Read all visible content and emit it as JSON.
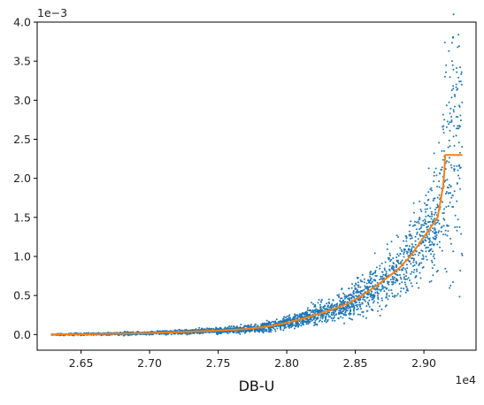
{
  "chart_data": {
    "type": "scatter",
    "title": "",
    "xlabel": "DB-U",
    "ylabel": "",
    "x_offset_text": "1e4",
    "y_offset_text": "1e−3",
    "xlim": [
      26180,
      29380
    ],
    "ylim": [
      -0.0002,
      0.004
    ],
    "x_ticks": [
      {
        "value": 26500,
        "label": "2.65"
      },
      {
        "value": 27000,
        "label": "2.70"
      },
      {
        "value": 27500,
        "label": "2.75"
      },
      {
        "value": 28000,
        "label": "2.80"
      },
      {
        "value": 28500,
        "label": "2.85"
      },
      {
        "value": 29000,
        "label": "2.90"
      }
    ],
    "y_ticks": [
      {
        "value": 0.0,
        "label": "0.0"
      },
      {
        "value": 0.0005,
        "label": "0.5"
      },
      {
        "value": 0.001,
        "label": "1.0"
      },
      {
        "value": 0.0015,
        "label": "1.5"
      },
      {
        "value": 0.002,
        "label": "2.0"
      },
      {
        "value": 0.0025,
        "label": "2.5"
      },
      {
        "value": 0.003,
        "label": "3.0"
      },
      {
        "value": 0.0035,
        "label": "3.5"
      },
      {
        "value": 0.004,
        "label": "4.0"
      }
    ],
    "grid": false,
    "legend": "none",
    "colors": {
      "scatter": "#1f77b4",
      "line": "#ff7f0e"
    },
    "scatter_summary": {
      "x_range": [
        26280,
        29280
      ],
      "point_count_approx": 3000
    },
    "series": [
      {
        "type": "line",
        "x": [
          26280,
          26500,
          26750,
          27000,
          27250,
          27500,
          27700,
          27850,
          28000,
          28150,
          28300,
          28450,
          28550,
          28650,
          28750,
          28820,
          28900,
          28960,
          29020,
          29060,
          29100,
          29120,
          29140,
          29150,
          29155,
          29160,
          29200,
          29250,
          29280
        ],
        "y": [
          0.0,
          4e-06,
          1e-05,
          2e-05,
          3.5e-05,
          5e-05,
          7e-05,
          0.0001,
          0.00015,
          0.00022,
          0.0003,
          0.0004,
          0.0005,
          0.00062,
          0.00075,
          0.00085,
          0.001,
          0.00115,
          0.0013,
          0.0014,
          0.0015,
          0.0017,
          0.0019,
          0.0021,
          0.0023,
          0.0023,
          0.0023,
          0.0023,
          0.0023
        ]
      }
    ]
  }
}
